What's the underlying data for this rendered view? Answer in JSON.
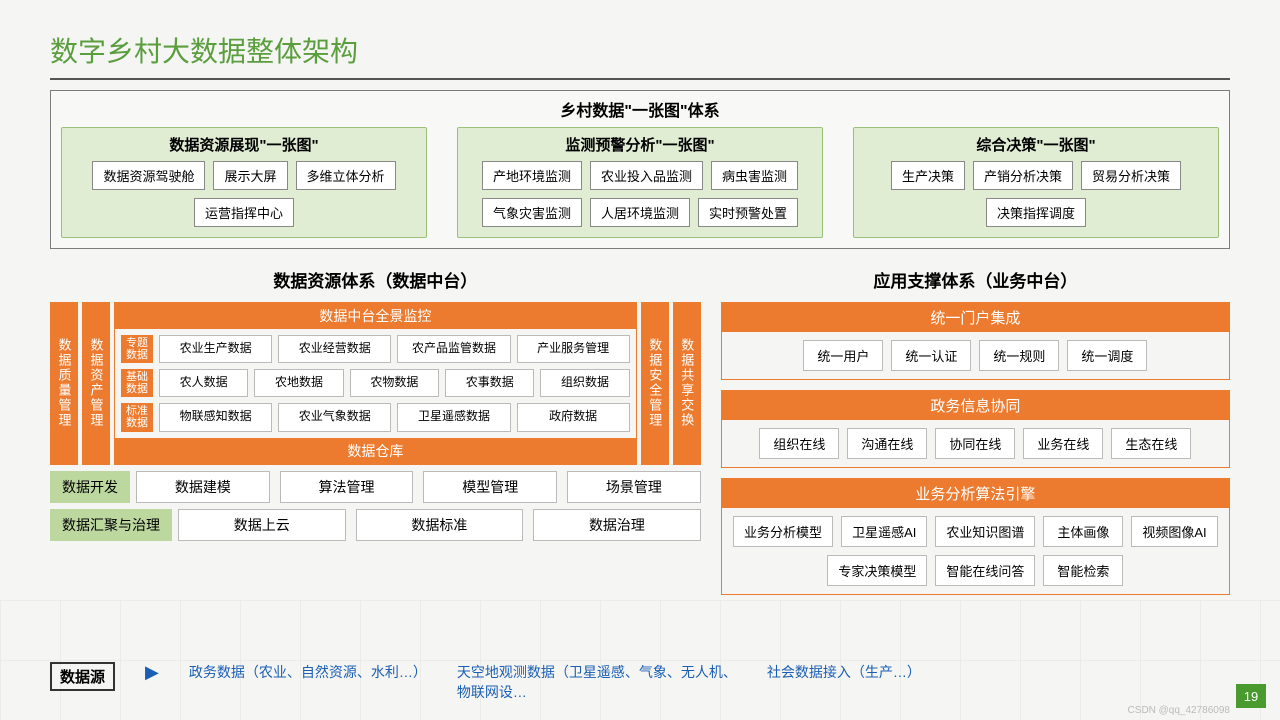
{
  "colors": {
    "accent_green": "#5a9e3e",
    "box_green": "#e0edd3",
    "green_border": "#9bc07a",
    "orange": "#ec7b2f",
    "strip_green": "#bcd89f",
    "link_blue": "#1a5fb4",
    "page_badge": "#4a9b2e",
    "bg": "#f5f5f3"
  },
  "title": "数字乡村大数据整体架构",
  "layer1": {
    "title": "乡村数据\"一张图\"体系",
    "groups": [
      {
        "title": "数据资源展现\"一张图\"",
        "items": [
          "数据资源驾驶舱",
          "展示大屏",
          "多维立体分析",
          "运营指挥中心"
        ]
      },
      {
        "title": "监测预警分析\"一张图\"",
        "items": [
          "产地环境监测",
          "农业投入品监测",
          "病虫害监测",
          "气象灾害监测",
          "人居环境监测",
          "实时预警处置"
        ]
      },
      {
        "title": "综合决策\"一张图\"",
        "items": [
          "生产决策",
          "产销分析决策",
          "贸易分析决策",
          "决策指挥调度"
        ]
      }
    ]
  },
  "mid_left": {
    "title": "数据资源体系（数据中台）",
    "vbars_left": [
      "数据质量管理",
      "数据资产管理"
    ],
    "vbars_right": [
      "数据安全管理",
      "数据共享交换"
    ],
    "header_top": "数据中台全景监控",
    "header_bottom": "数据仓库",
    "rows": [
      {
        "tag": "专题数据",
        "items": [
          "农业生产数据",
          "农业经营数据",
          "农产品监管数据",
          "产业服务管理"
        ]
      },
      {
        "tag": "基础数据",
        "items": [
          "农人数据",
          "农地数据",
          "农物数据",
          "农事数据",
          "组织数据"
        ]
      },
      {
        "tag": "标准数据",
        "items": [
          "物联感知数据",
          "农业气象数据",
          "卫星遥感数据",
          "政府数据"
        ]
      }
    ],
    "strips": [
      {
        "label": "数据开发",
        "items": [
          "数据建模",
          "算法管理",
          "模型管理",
          "场景管理"
        ]
      },
      {
        "label": "数据汇聚与治理",
        "items": [
          "数据上云",
          "数据标准",
          "数据治理"
        ]
      }
    ]
  },
  "mid_right": {
    "title": "应用支撑体系（业务中台）",
    "blocks": [
      {
        "title": "统一门户集成",
        "items": [
          "统一用户",
          "统一认证",
          "统一规则",
          "统一调度"
        ]
      },
      {
        "title": "政务信息协同",
        "items": [
          "组织在线",
          "沟通在线",
          "协同在线",
          "业务在线",
          "生态在线"
        ]
      },
      {
        "title": "业务分析算法引擎",
        "items": [
          "业务分析模型",
          "卫星遥感AI",
          "农业知识图谱",
          "主体画像",
          "视频图像AI",
          "专家决策模型",
          "智能在线问答",
          "智能检索"
        ]
      }
    ]
  },
  "bottom": {
    "label": "数据源",
    "items": [
      "政务数据（农业、自然资源、水利…）",
      "天空地观测数据（卫星遥感、气象、无人机、物联网设…",
      "社会数据接入（生产…）"
    ]
  },
  "page": "19",
  "watermark": "CSDN @qq_42786098"
}
